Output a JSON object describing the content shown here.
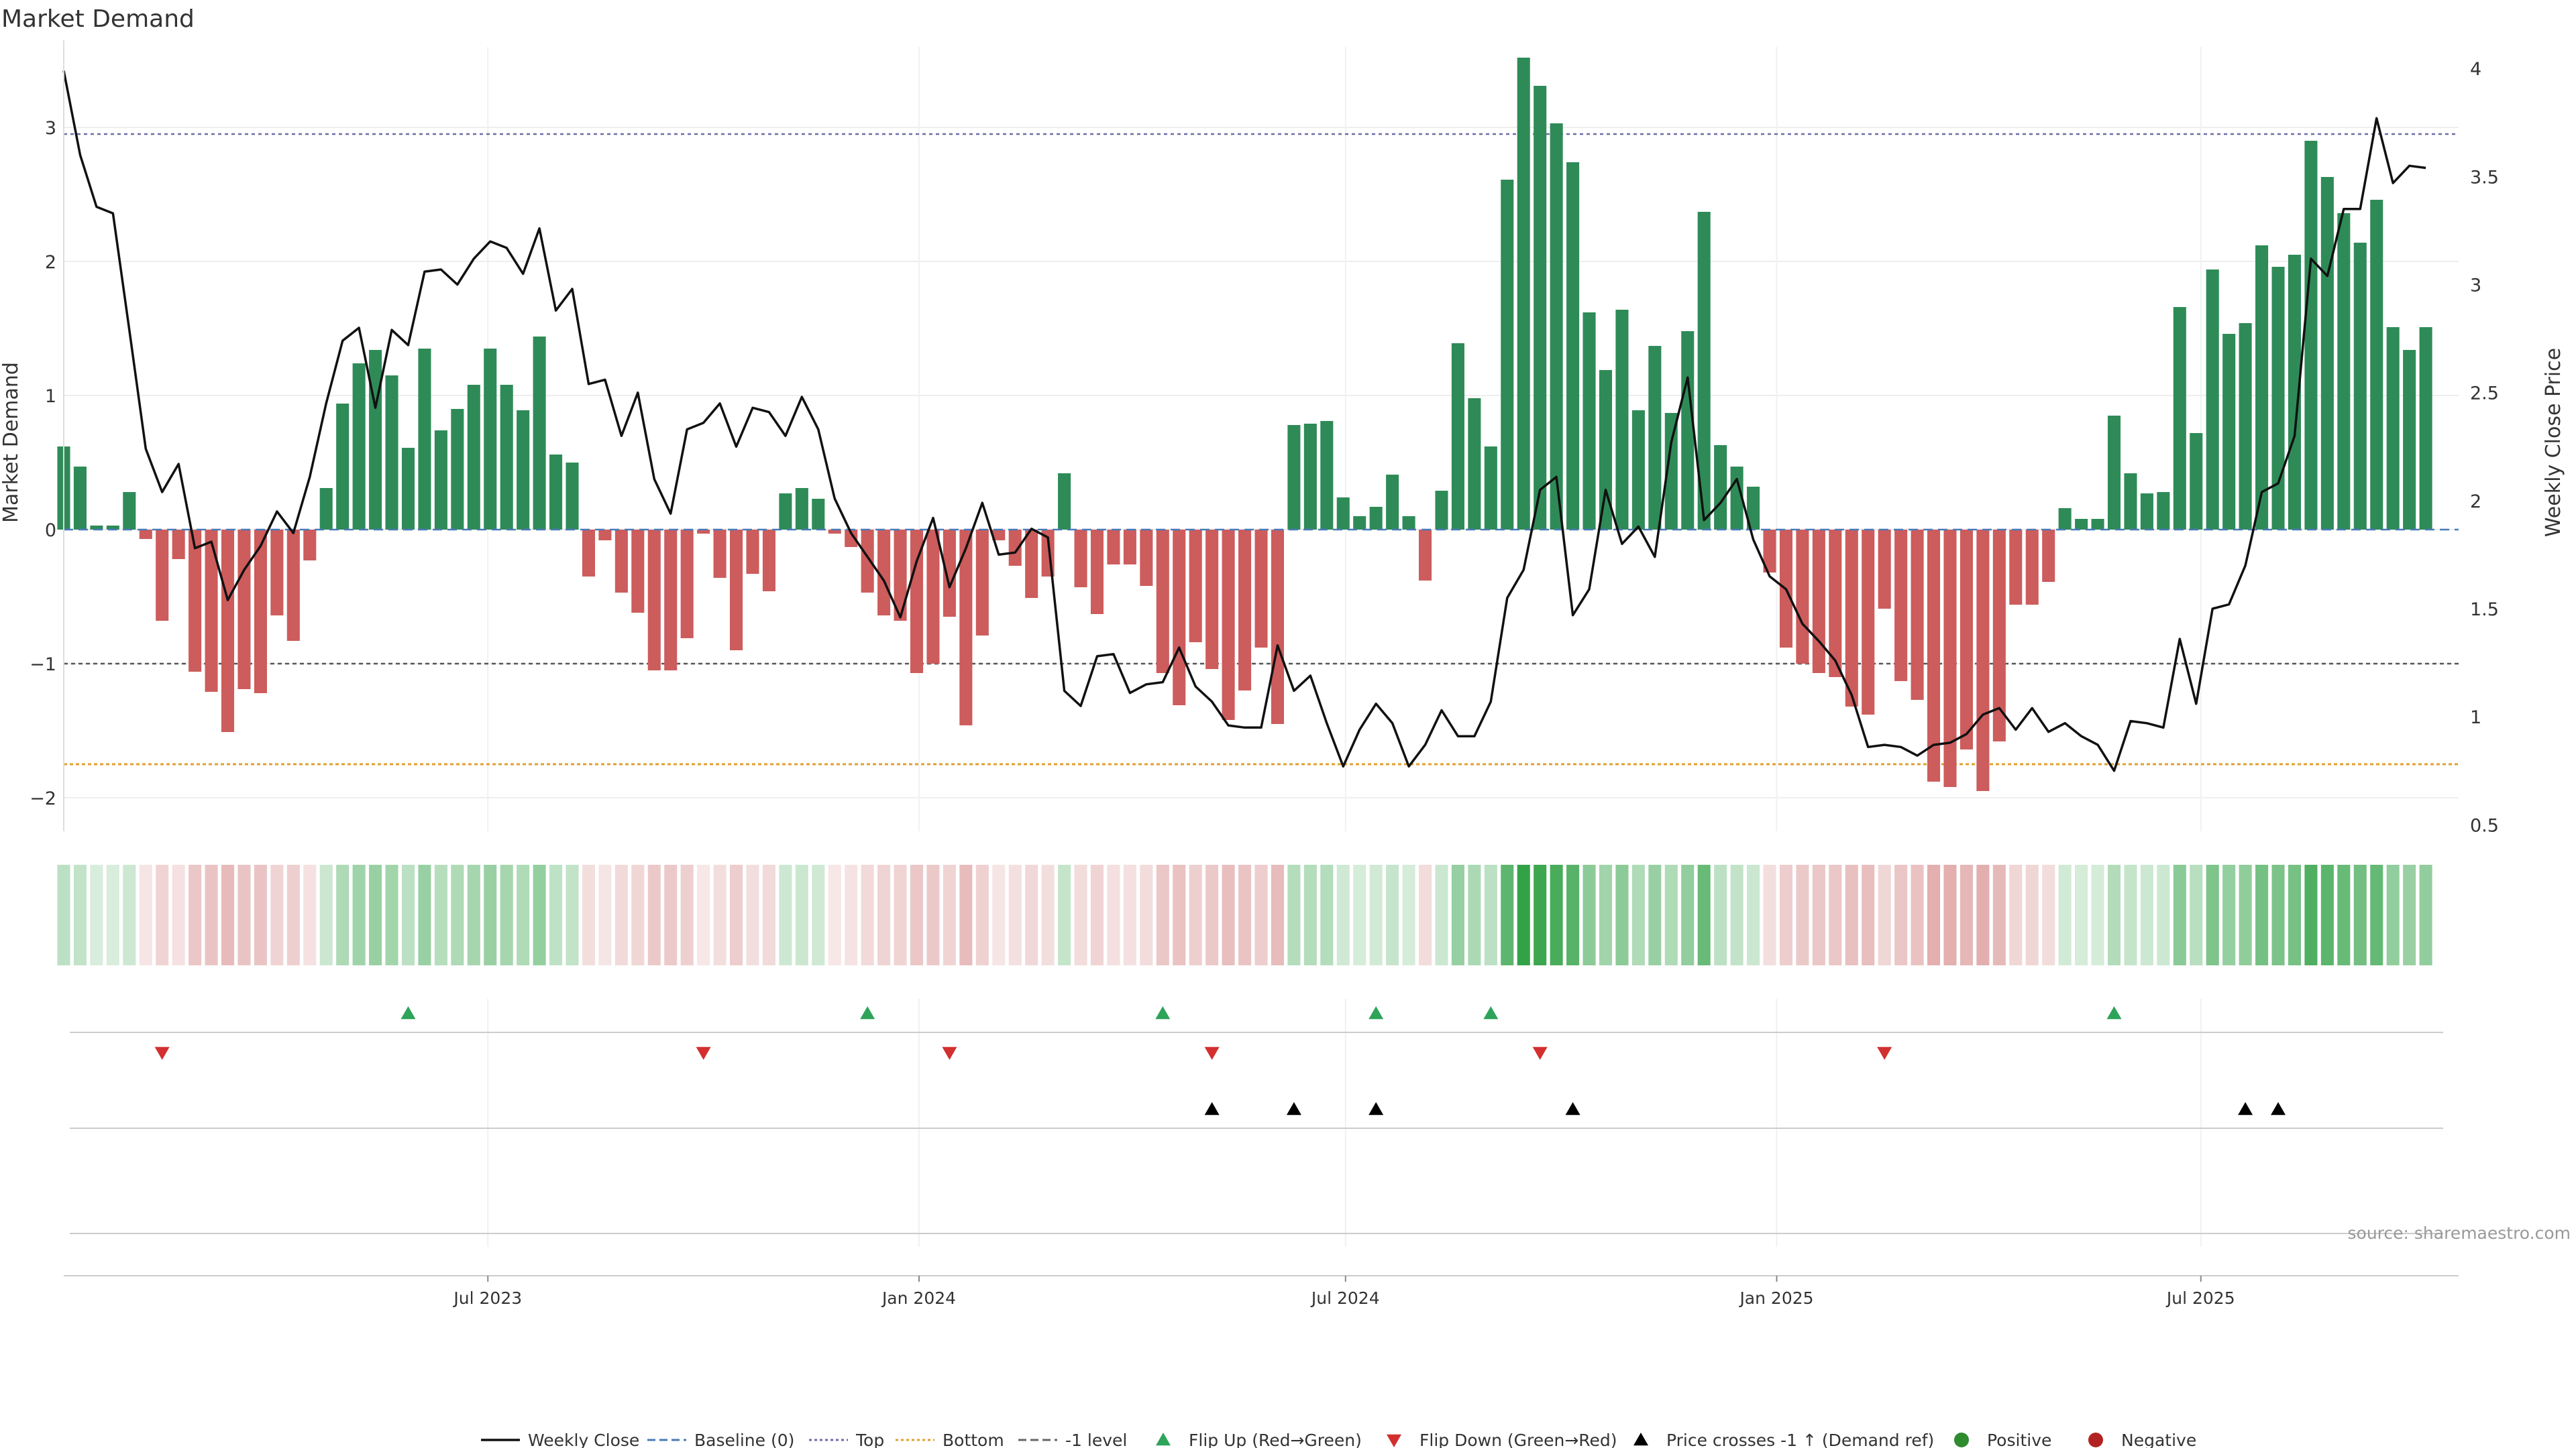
{
  "chart_data": {
    "type": "bar",
    "title": "Market Demand",
    "ylabel": "Market Demand",
    "y2label": "Weekly Close Price",
    "ylim": [
      -2.25,
      3.6
    ],
    "y2lim": [
      0.47,
      4.1
    ],
    "yticks": [
      -2,
      -1,
      0,
      1,
      2,
      3
    ],
    "y2ticks": [
      0.5,
      1,
      1.5,
      2,
      2.5,
      3,
      3.5,
      4
    ],
    "x_start": "2023-01-01",
    "x_end": "2025-10-19",
    "xticks": [
      {
        "date": "2023-07-01",
        "label": "Jul 2023"
      },
      {
        "date": "2024-01-01",
        "label": "Jan 2024"
      },
      {
        "date": "2024-07-01",
        "label": "Jul 2024"
      },
      {
        "date": "2025-01-01",
        "label": "Jan 2025"
      },
      {
        "date": "2025-07-01",
        "label": "Jul 2025"
      }
    ],
    "reference_lines": {
      "top": 2.95,
      "bottom": -1.75,
      "minus_one": -1,
      "baseline": 0
    },
    "weeks": [
      "2023-01-01",
      "2023-01-08",
      "2023-01-15",
      "2023-01-22",
      "2023-01-29",
      "2023-02-05",
      "2023-02-12",
      "2023-02-19",
      "2023-02-26",
      "2023-03-05",
      "2023-03-12",
      "2023-03-19",
      "2023-03-26",
      "2023-04-02",
      "2023-04-09",
      "2023-04-16",
      "2023-04-23",
      "2023-04-30",
      "2023-05-07",
      "2023-05-14",
      "2023-05-21",
      "2023-05-28",
      "2023-06-04",
      "2023-06-11",
      "2023-06-18",
      "2023-06-25",
      "2023-07-02",
      "2023-07-09",
      "2023-07-16",
      "2023-07-23",
      "2023-07-30",
      "2023-08-06",
      "2023-08-13",
      "2023-08-20",
      "2023-08-27",
      "2023-09-03",
      "2023-09-10",
      "2023-09-17",
      "2023-09-24",
      "2023-10-01",
      "2023-10-08",
      "2023-10-15",
      "2023-10-22",
      "2023-10-29",
      "2023-11-05",
      "2023-11-12",
      "2023-11-19",
      "2023-11-26",
      "2023-12-03",
      "2023-12-10",
      "2023-12-17",
      "2023-12-24",
      "2023-12-31",
      "2024-01-07",
      "2024-01-14",
      "2024-01-21",
      "2024-01-28",
      "2024-02-04",
      "2024-02-11",
      "2024-02-18",
      "2024-02-25",
      "2024-03-03",
      "2024-03-10",
      "2024-03-17",
      "2024-03-24",
      "2024-03-31",
      "2024-04-07",
      "2024-04-14",
      "2024-04-21",
      "2024-04-28",
      "2024-05-05",
      "2024-05-12",
      "2024-05-19",
      "2024-05-26",
      "2024-06-02",
      "2024-06-09",
      "2024-06-16",
      "2024-06-23",
      "2024-06-30",
      "2024-07-07",
      "2024-07-14",
      "2024-07-21",
      "2024-07-28",
      "2024-08-04",
      "2024-08-11",
      "2024-08-18",
      "2024-08-25",
      "2024-09-01",
      "2024-09-08",
      "2024-09-15",
      "2024-09-22",
      "2024-09-29",
      "2024-10-06",
      "2024-10-13",
      "2024-10-20",
      "2024-10-27",
      "2024-11-03",
      "2024-11-10",
      "2024-11-17",
      "2024-11-24",
      "2024-12-01",
      "2024-12-08",
      "2024-12-15",
      "2024-12-22",
      "2024-12-29",
      "2025-01-05",
      "2025-01-12",
      "2025-01-19",
      "2025-01-26",
      "2025-02-02",
      "2025-02-09",
      "2025-02-16",
      "2025-02-23",
      "2025-03-02",
      "2025-03-09",
      "2025-03-16",
      "2025-03-23",
      "2025-03-30",
      "2025-04-06",
      "2025-04-13",
      "2025-04-20",
      "2025-04-27",
      "2025-05-04",
      "2025-05-11",
      "2025-05-18",
      "2025-05-25",
      "2025-06-01",
      "2025-06-08",
      "2025-06-15",
      "2025-06-22",
      "2025-06-29",
      "2025-07-06",
      "2025-07-13",
      "2025-07-20",
      "2025-07-27",
      "2025-08-03",
      "2025-08-10",
      "2025-08-17",
      "2025-08-24",
      "2025-08-31",
      "2025-09-07",
      "2025-09-14",
      "2025-09-21",
      "2025-09-28",
      "2025-10-05",
      "2025-10-12",
      "2025-10-19"
    ],
    "series": [
      {
        "name": "Market Demand",
        "axis": "left",
        "values": [
          0.62,
          0.47,
          0.03,
          0.03,
          0.28,
          -0.07,
          -0.68,
          -0.22,
          -1.06,
          -1.21,
          -1.51,
          -1.19,
          -1.22,
          -0.64,
          -0.83,
          -0.23,
          0.31,
          0.94,
          1.24,
          1.34,
          1.15,
          0.61,
          1.35,
          0.74,
          0.9,
          1.08,
          1.35,
          1.08,
          0.89,
          1.44,
          0.56,
          0.5,
          -0.35,
          -0.08,
          -0.47,
          -0.62,
          -1.05,
          -1.05,
          -0.81,
          -0.03,
          -0.36,
          -0.9,
          -0.33,
          -0.46,
          0.27,
          0.31,
          0.23,
          -0.03,
          -0.13,
          -0.47,
          -0.64,
          -0.68,
          -1.07,
          -1.0,
          -0.65,
          -1.46,
          -0.79,
          -0.08,
          -0.27,
          -0.51,
          -0.35,
          0.42,
          -0.43,
          -0.63,
          -0.26,
          -0.26,
          -0.42,
          -1.07,
          -1.31,
          -0.84,
          -1.04,
          -1.42,
          -1.2,
          -0.88,
          -1.45,
          0.78,
          0.79,
          0.81,
          0.24,
          0.1,
          0.17,
          0.41,
          0.1,
          -0.38,
          0.29,
          1.39,
          0.98,
          0.62,
          2.61,
          3.52,
          3.31,
          3.03,
          2.74,
          1.62,
          1.19,
          1.64,
          0.89,
          1.37,
          0.87,
          1.48,
          2.37,
          0.63,
          0.47,
          0.32,
          -0.32,
          -0.88,
          -1.0,
          -1.07,
          -1.1,
          -1.32,
          -1.38,
          -0.59,
          -1.13,
          -1.27,
          -1.88,
          -1.92,
          -1.64,
          -1.95,
          -1.58,
          -0.56,
          -0.56,
          -0.39,
          0.16,
          0.08,
          0.08,
          0.85,
          0.42,
          0.27,
          0.28,
          1.66,
          0.72,
          1.94,
          1.46,
          1.54,
          2.12,
          1.96,
          2.05,
          2.9,
          2.63,
          2.36,
          2.14,
          2.46,
          1.51,
          1.34,
          1.51
        ]
      },
      {
        "name": "Weekly Close",
        "axis": "right",
        "values": [
          3.99,
          3.6,
          3.36,
          3.33,
          2.79,
          2.24,
          2.04,
          2.17,
          1.78,
          1.81,
          1.54,
          1.68,
          1.79,
          1.95,
          1.85,
          2.11,
          2.45,
          2.74,
          2.8,
          2.43,
          2.79,
          2.72,
          3.06,
          3.07,
          3.0,
          3.12,
          3.2,
          3.17,
          3.05,
          3.26,
          2.88,
          2.98,
          2.54,
          2.56,
          2.3,
          2.5,
          2.1,
          1.94,
          2.33,
          2.36,
          2.45,
          2.25,
          2.43,
          2.41,
          2.3,
          2.48,
          2.33,
          2.01,
          1.85,
          1.74,
          1.63,
          1.46,
          1.72,
          1.92,
          1.6,
          1.78,
          1.99,
          1.75,
          1.76,
          1.87,
          1.83,
          1.12,
          1.05,
          1.28,
          1.29,
          1.11,
          1.15,
          1.16,
          1.32,
          1.14,
          1.07,
          0.96,
          0.95,
          0.95,
          1.33,
          1.12,
          1.19,
          0.97,
          0.77,
          0.94,
          1.06,
          0.97,
          0.77,
          0.87,
          1.03,
          0.91,
          0.91,
          1.07,
          1.55,
          1.68,
          2.05,
          2.11,
          1.47,
          1.59,
          2.05,
          1.8,
          1.88,
          1.74,
          2.27,
          2.57,
          1.91,
          1.99,
          2.1,
          1.82,
          1.65,
          1.59,
          1.43,
          1.35,
          1.26,
          1.1,
          0.86,
          0.87,
          0.86,
          0.82,
          0.87,
          0.88,
          0.92,
          1.01,
          1.04,
          0.94,
          1.04,
          0.93,
          0.97,
          0.91,
          0.87,
          0.75,
          0.98,
          0.97,
          0.95,
          1.36,
          1.06,
          1.5,
          1.52,
          1.7,
          2.04,
          2.08,
          2.3,
          3.12,
          3.04,
          3.35,
          3.35,
          3.77,
          3.47,
          3.55,
          3.54
        ]
      }
    ],
    "heat_strip": {
      "label": "",
      "encodes": "Market Demand sign and magnitude per week"
    },
    "event_rows": [
      {
        "name": "Flip Up (Red→Green)",
        "dates": [
          "2023-05-28",
          "2023-12-10",
          "2024-04-14",
          "2024-07-14",
          "2024-09-01",
          "2025-05-25"
        ]
      },
      {
        "name": "Flip Down (Green→Red)",
        "dates": [
          "2023-02-12",
          "2023-10-01",
          "2024-01-14",
          "2024-05-05",
          "2024-09-22",
          "2025-02-16"
        ]
      },
      {
        "name": "Price crosses -1 ↑ (Demand ref)",
        "dates": [
          "2024-05-05",
          "2024-06-09",
          "2024-07-14",
          "2024-10-06",
          "2025-07-20",
          "2025-08-03"
        ]
      }
    ],
    "legend": {
      "placement": "bottom",
      "entries": [
        {
          "label": "Weekly Close",
          "marker": "line",
          "color": "#111111"
        },
        {
          "label": "Baseline (0)",
          "marker": "dashed",
          "color": "#4a7ab8"
        },
        {
          "label": "Top",
          "marker": "dotted",
          "color": "#6c6ca8"
        },
        {
          "label": "Bottom",
          "marker": "dotted",
          "color": "#e0a030"
        },
        {
          "label": "-1 level",
          "marker": "dashed",
          "color": "#666666"
        },
        {
          "label": "Flip Up (Red→Green)",
          "marker": "triangle-up",
          "color": "#2ea35a"
        },
        {
          "label": "Flip Down (Green→Red)",
          "marker": "triangle-down",
          "color": "#d32f2f"
        },
        {
          "label": "Price crosses -1 ↑ (Demand ref)",
          "marker": "triangle-up",
          "color": "#000000"
        },
        {
          "label": "Positive",
          "marker": "circle",
          "color": "#2e8b2e"
        },
        {
          "label": "Negative",
          "marker": "circle",
          "color": "#b22222"
        }
      ]
    },
    "colors": {
      "positive_bar": "#2e8b57",
      "negative_bar": "#cd5c5c",
      "price_line": "#111111",
      "top_line": "#6c6ca8",
      "bottom_line": "#e0a030",
      "minus_one_line": "#555555",
      "baseline": "#4a7ab8"
    },
    "grid": true,
    "annotation": "source: sharemaestro.com"
  }
}
